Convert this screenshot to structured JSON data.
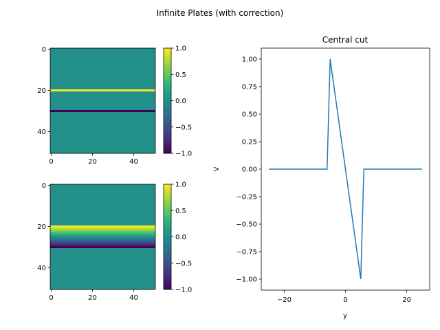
{
  "figure": {
    "suptitle": "Infinite Plates (with correction)"
  },
  "chart_data": [
    {
      "type": "heatmap",
      "title": "",
      "xlabel": "",
      "ylabel": "",
      "xlim": [
        -0.5,
        50.5
      ],
      "ylim": [
        50.5,
        -0.5
      ],
      "x_ticks": [
        0,
        20,
        40
      ],
      "y_ticks": [
        0,
        20,
        40
      ],
      "grid_size": 51,
      "colormap": "viridis",
      "colorbar_range": [
        -1.0,
        1.0
      ],
      "colorbar_ticks": [
        "1.0",
        "0.5",
        "0.0",
        "−0.5",
        "−1.0"
      ],
      "colorbar_tick_values": [
        1.0,
        0.5,
        0.0,
        -0.5,
        -1.0
      ],
      "rows": [
        {
          "row_from": 0,
          "row_to": 19,
          "value": 0.0
        },
        {
          "row_from": 20,
          "row_to": 20,
          "value": 1.0
        },
        {
          "row_from": 21,
          "row_to": 29,
          "value": 0.0
        },
        {
          "row_from": 30,
          "row_to": 30,
          "value": -1.0
        },
        {
          "row_from": 31,
          "row_to": 50,
          "value": 0.0
        }
      ]
    },
    {
      "type": "heatmap",
      "title": "",
      "xlabel": "",
      "ylabel": "",
      "xlim": [
        -0.5,
        50.5
      ],
      "ylim": [
        50.5,
        -0.5
      ],
      "x_ticks": [
        0,
        20,
        40
      ],
      "y_ticks": [
        0,
        20,
        40
      ],
      "grid_size": 51,
      "colormap": "viridis",
      "colorbar_range": [
        -1.0,
        1.0
      ],
      "colorbar_ticks": [
        "1.0",
        "0.5",
        "0.0",
        "−0.5",
        "−1.0"
      ],
      "colorbar_tick_values": [
        1.0,
        0.5,
        0.0,
        -0.5,
        -1.0
      ],
      "rows": [
        {
          "row_from": 0,
          "row_to": 19,
          "value": 0.0
        },
        {
          "row_from": 20,
          "row_to": 20,
          "value": 1.0
        },
        {
          "row_from": 21,
          "row_to": 21,
          "value": 0.8
        },
        {
          "row_from": 22,
          "row_to": 22,
          "value": 0.6
        },
        {
          "row_from": 23,
          "row_to": 23,
          "value": 0.4
        },
        {
          "row_from": 24,
          "row_to": 24,
          "value": 0.2
        },
        {
          "row_from": 25,
          "row_to": 25,
          "value": 0.0
        },
        {
          "row_from": 26,
          "row_to": 26,
          "value": -0.2
        },
        {
          "row_from": 27,
          "row_to": 27,
          "value": -0.4
        },
        {
          "row_from": 28,
          "row_to": 28,
          "value": -0.6
        },
        {
          "row_from": 29,
          "row_to": 29,
          "value": -0.8
        },
        {
          "row_from": 30,
          "row_to": 30,
          "value": -1.0
        },
        {
          "row_from": 31,
          "row_to": 50,
          "value": 0.0
        }
      ]
    },
    {
      "type": "line",
      "title": "Central cut",
      "xlabel": "y",
      "ylabel": "V",
      "xlim": [
        -27.5,
        27.5
      ],
      "ylim": [
        -1.1,
        1.1
      ],
      "x_ticks": [
        -20,
        0,
        20
      ],
      "x_tick_labels": [
        "−20",
        "0",
        "20"
      ],
      "y_ticks": [
        1.0,
        0.75,
        0.5,
        0.25,
        0.0,
        -0.25,
        -0.5,
        -0.75,
        -1.0
      ],
      "y_tick_labels": [
        "1.00",
        "0.75",
        "0.50",
        "0.25",
        "0.00",
        "−0.25",
        "−0.50",
        "−0.75",
        "−1.00"
      ],
      "series": [
        {
          "color": "#1f77b4",
          "x": [
            -25,
            -6,
            -5,
            -4,
            -3,
            -2,
            -1,
            0,
            1,
            2,
            3,
            4,
            5,
            6,
            25
          ],
          "y": [
            0,
            0,
            1.0,
            0.8,
            0.6,
            0.4,
            0.2,
            0.0,
            -0.2,
            -0.4,
            -0.6,
            -0.8,
            -1.0,
            0,
            0
          ]
        }
      ]
    }
  ]
}
